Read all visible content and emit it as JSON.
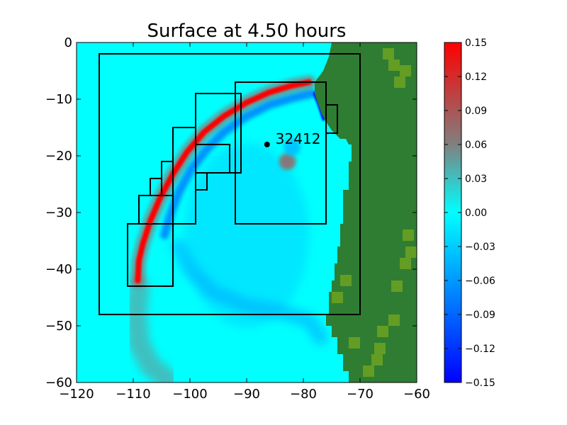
{
  "chart_data": {
    "type": "heatmap",
    "title": "Surface at 4.50 hours",
    "xlabel": "",
    "ylabel": "",
    "xlim": [
      -120,
      -60
    ],
    "ylim": [
      -60,
      0
    ],
    "x_ticks": [
      -120,
      -110,
      -100,
      -90,
      -80,
      -70,
      -60
    ],
    "y_ticks": [
      0,
      -10,
      -20,
      -30,
      -40,
      -50,
      -60
    ],
    "x_tick_labels": [
      "−120",
      "−110",
      "−100",
      "−90",
      "−80",
      "−70",
      "−60"
    ],
    "y_tick_labels": [
      "0",
      "−10",
      "−20",
      "−30",
      "−40",
      "−50",
      "−60"
    ],
    "colorbar": {
      "range": [
        -0.15,
        0.15
      ],
      "ticks": [
        0.15,
        0.12,
        0.09,
        0.06,
        0.03,
        0.0,
        -0.03,
        -0.06,
        -0.09,
        -0.12,
        -0.15
      ],
      "tick_labels": [
        "0.15",
        "0.12",
        "0.09",
        "0.06",
        "0.03",
        "0.00",
        "−0.03",
        "−0.06",
        "−0.09",
        "−0.12",
        "−0.15"
      ],
      "colors": [
        "#0000ff",
        "#00ffff",
        "#808080",
        "#ff0000"
      ]
    },
    "background_color": "#00ffff",
    "land_color": "#2e7d32",
    "land_highlight_color": "#6aa121",
    "gauge": {
      "label": "32412",
      "x": -86.4,
      "y": -18
    },
    "refinement_boxes": [
      {
        "x1": -116,
        "x2": -70,
        "y1": -48,
        "y2": -2
      },
      {
        "x1": -92,
        "x2": -76,
        "y1": -32,
        "y2": -7
      },
      {
        "x1": -99,
        "x2": -91,
        "y1": -23,
        "y2": -9
      },
      {
        "x1": -103,
        "x2": -99,
        "y1": -32,
        "y2": -15
      },
      {
        "x1": -99,
        "x2": -93,
        "y1": -23,
        "y2": -18
      },
      {
        "x1": -99,
        "x2": -97,
        "y1": -26,
        "y2": -23
      },
      {
        "x1": -105,
        "x2": -103,
        "y1": -27,
        "y2": -21
      },
      {
        "x1": -107,
        "x2": -105,
        "y1": -27,
        "y2": -24
      },
      {
        "x1": -109,
        "x2": -103,
        "y1": -32,
        "y2": -27
      },
      {
        "x1": -111,
        "x2": -103,
        "y1": -43,
        "y2": -32
      },
      {
        "x1": -76,
        "x2": -74,
        "y1": -16,
        "y2": -11
      }
    ],
    "wave_front": {
      "value": 0.15,
      "points": [
        [
          -79,
          -7
        ],
        [
          -82,
          -7.6
        ],
        [
          -86,
          -8.8
        ],
        [
          -90,
          -10.6
        ],
        [
          -94,
          -13
        ],
        [
          -97.5,
          -15.8
        ],
        [
          -100.5,
          -19.3
        ],
        [
          -103,
          -23.2
        ],
        [
          -105.3,
          -27.5
        ],
        [
          -107,
          -31.5
        ],
        [
          -108.3,
          -35.5
        ],
        [
          -109,
          -38.5
        ],
        [
          -109.2,
          -42
        ]
      ]
    },
    "trough_front": {
      "value": -0.08,
      "points": [
        [
          -78.5,
          -9
        ],
        [
          -82,
          -9.8
        ],
        [
          -86,
          -11
        ],
        [
          -90,
          -13
        ],
        [
          -94,
          -15.8
        ],
        [
          -97,
          -18.8
        ],
        [
          -99.8,
          -22.4
        ],
        [
          -102,
          -26.5
        ],
        [
          -103.5,
          -30.5
        ],
        [
          -104.5,
          -34
        ]
      ]
    },
    "inner_ring": {
      "value": -0.05,
      "points": [
        [
          -102,
          -36
        ],
        [
          -100,
          -40
        ],
        [
          -96,
          -44
        ],
        [
          -90,
          -46.5
        ],
        [
          -84,
          -47.5
        ],
        [
          -79,
          -49
        ],
        [
          -77,
          -52
        ]
      ]
    },
    "outer_tail": {
      "value": 0.05,
      "points": [
        [
          -109,
          -43
        ],
        [
          -109.5,
          -48
        ],
        [
          -109,
          -53
        ],
        [
          -107,
          -57
        ],
        [
          -104,
          -59.5
        ]
      ]
    },
    "local_peaks": [
      {
        "x": -82.8,
        "y": -21,
        "value": 0.08
      },
      {
        "x": -82,
        "y": -18.5,
        "value": -0.04
      }
    ],
    "coast_trough": {
      "value": -0.14,
      "points": [
        [
          -78,
          -9
        ],
        [
          -77.2,
          -11
        ],
        [
          -76.4,
          -13.5
        ]
      ]
    },
    "land": {
      "polygon": [
        [
          -75,
          0
        ],
        [
          -60,
          0
        ],
        [
          -60,
          -60
        ],
        [
          -72,
          -60
        ],
        [
          -72,
          -58
        ],
        [
          -73,
          -58
        ],
        [
          -73,
          -55
        ],
        [
          -74,
          -55
        ],
        [
          -74,
          -52
        ],
        [
          -75,
          -52
        ],
        [
          -75,
          -50
        ],
        [
          -76,
          -50
        ],
        [
          -76,
          -48
        ],
        [
          -75.5,
          -48
        ],
        [
          -75.5,
          -44
        ],
        [
          -75,
          -44
        ],
        [
          -75,
          -42
        ],
        [
          -74.5,
          -42
        ],
        [
          -74.5,
          -39
        ],
        [
          -74,
          -39
        ],
        [
          -74,
          -36
        ],
        [
          -73.5,
          -36
        ],
        [
          -73.5,
          -32
        ],
        [
          -73,
          -32
        ],
        [
          -73,
          -26
        ],
        [
          -72,
          -26
        ],
        [
          -72,
          -21
        ],
        [
          -71.5,
          -21
        ],
        [
          -71.5,
          -18
        ],
        [
          -72,
          -18
        ],
        [
          -72.5,
          -17
        ],
        [
          -73.5,
          -17
        ],
        [
          -75,
          -15.5
        ],
        [
          -76,
          -14
        ],
        [
          -76.8,
          -12.5
        ],
        [
          -77.5,
          -10.5
        ],
        [
          -78,
          -9
        ],
        [
          -78,
          -7
        ],
        [
          -76.5,
          -5
        ],
        [
          -75.5,
          -2.5
        ],
        [
          -75,
          0
        ]
      ],
      "highlights": [
        [
          -65,
          -2
        ],
        [
          -64,
          -4
        ],
        [
          -63,
          -7
        ],
        [
          -62,
          -5
        ],
        [
          -61,
          -37
        ],
        [
          -61.5,
          -34
        ],
        [
          -62,
          -39
        ],
        [
          -63.5,
          -43
        ],
        [
          -64,
          -49
        ],
        [
          -66,
          -51
        ],
        [
          -66.5,
          -54
        ],
        [
          -67,
          -56
        ],
        [
          -68.5,
          -58
        ],
        [
          -70,
          -61
        ],
        [
          -71,
          -53
        ],
        [
          -72.5,
          -42
        ],
        [
          -74,
          -45
        ]
      ]
    }
  }
}
